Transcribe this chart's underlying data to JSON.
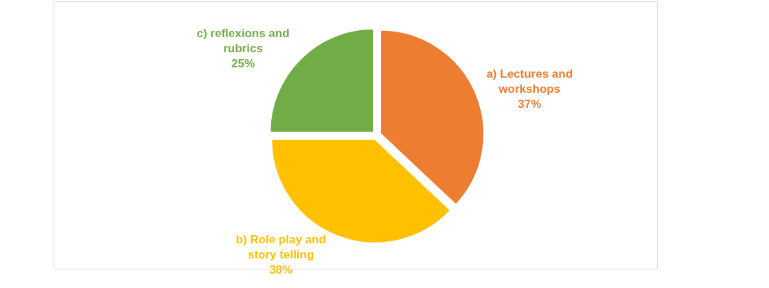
{
  "chart_data": {
    "type": "pie",
    "categories": [
      "a) Lectures and workshops",
      "b) Role play and story telling",
      "c) reflexions and rubrics"
    ],
    "values": [
      37,
      38,
      25
    ],
    "value_labels": [
      "37%",
      "38%",
      "25%"
    ],
    "colors": [
      "#ed7d31",
      "#ffc000",
      "#70ad47"
    ]
  }
}
